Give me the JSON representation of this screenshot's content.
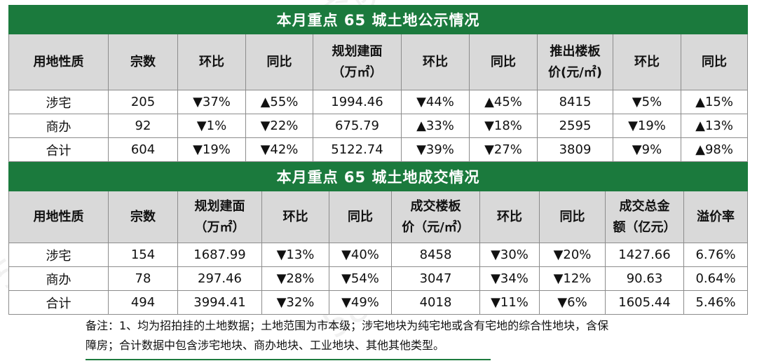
{
  "watermark": "58安居客研究院",
  "table1": {
    "title": "本月重点 65 城土地公示情况",
    "headers": [
      "用地性质",
      "宗数",
      "环比",
      "同比",
      "规划建面（万㎡）",
      "环比",
      "同比",
      "推出楼板价(元/㎡)",
      "环比",
      "同比"
    ],
    "header_lines": [
      [
        "用地性质"
      ],
      [
        "宗数"
      ],
      [
        "环比"
      ],
      [
        "同比"
      ],
      [
        "规划建面",
        "（万㎡）"
      ],
      [
        "环比"
      ],
      [
        "同比"
      ],
      [
        "推出楼板",
        "价(元/㎡)"
      ],
      [
        "环比"
      ],
      [
        "同比"
      ]
    ],
    "rows": [
      [
        {
          "text": "涉宅"
        },
        {
          "text": "205"
        },
        {
          "text": "▼37%",
          "dir": "down"
        },
        {
          "text": "▲55%",
          "dir": "up"
        },
        {
          "text": "1994.46"
        },
        {
          "text": "▼44%",
          "dir": "down"
        },
        {
          "text": "▲45%",
          "dir": "up"
        },
        {
          "text": "8415"
        },
        {
          "text": "▼5%",
          "dir": "down"
        },
        {
          "text": "▲15%",
          "dir": "up"
        }
      ],
      [
        {
          "text": "商办"
        },
        {
          "text": "92"
        },
        {
          "text": "▼1%",
          "dir": "down"
        },
        {
          "text": "▼22%",
          "dir": "down"
        },
        {
          "text": "675.79"
        },
        {
          "text": "▲33%",
          "dir": "up"
        },
        {
          "text": "▼18%",
          "dir": "down"
        },
        {
          "text": "2595"
        },
        {
          "text": "▼19%",
          "dir": "down"
        },
        {
          "text": "▲13%",
          "dir": "up"
        }
      ],
      [
        {
          "text": "合计"
        },
        {
          "text": "604"
        },
        {
          "text": "▼19%",
          "dir": "down"
        },
        {
          "text": "▼42%",
          "dir": "down"
        },
        {
          "text": "5122.74"
        },
        {
          "text": "▼39%",
          "dir": "down"
        },
        {
          "text": "▼27%",
          "dir": "down"
        },
        {
          "text": "3809"
        },
        {
          "text": "▼9%",
          "dir": "down"
        },
        {
          "text": "▲98%",
          "dir": "up"
        }
      ]
    ]
  },
  "table2": {
    "title": "本月重点 65 城土地成交情况",
    "headers": [
      "用地性质",
      "宗数",
      "规划建面（万㎡）",
      "环比",
      "同比",
      "成交楼板价（元/㎡）",
      "环比",
      "同比",
      "成交总金额（亿元）",
      "溢价率"
    ],
    "header_lines": [
      [
        "用地性质"
      ],
      [
        "宗数"
      ],
      [
        "规划建面",
        "（万㎡）"
      ],
      [
        "环比"
      ],
      [
        "同比"
      ],
      [
        "成交楼板",
        "价（元/㎡）"
      ],
      [
        "环比"
      ],
      [
        "同比"
      ],
      [
        "成交总金",
        "额（亿元）"
      ],
      [
        "溢价率"
      ]
    ],
    "rows": [
      [
        {
          "text": "涉宅"
        },
        {
          "text": "154"
        },
        {
          "text": "1687.99"
        },
        {
          "text": "▼13%",
          "dir": "down"
        },
        {
          "text": "▼40%",
          "dir": "down"
        },
        {
          "text": "8458"
        },
        {
          "text": "▼30%",
          "dir": "down"
        },
        {
          "text": "▼20%",
          "dir": "down"
        },
        {
          "text": "1427.66"
        },
        {
          "text": "6.76%"
        }
      ],
      [
        {
          "text": "商办"
        },
        {
          "text": "78"
        },
        {
          "text": "297.46"
        },
        {
          "text": "▼28%",
          "dir": "down"
        },
        {
          "text": "▼54%",
          "dir": "down"
        },
        {
          "text": "3047"
        },
        {
          "text": "▼34%",
          "dir": "down"
        },
        {
          "text": "▼12%",
          "dir": "down"
        },
        {
          "text": "90.63"
        },
        {
          "text": "0.64%"
        }
      ],
      [
        {
          "text": "合计"
        },
        {
          "text": "494"
        },
        {
          "text": "3994.41"
        },
        {
          "text": "▼32%",
          "dir": "down"
        },
        {
          "text": "▼49%",
          "dir": "down"
        },
        {
          "text": "4018"
        },
        {
          "text": "▼11%",
          "dir": "down"
        },
        {
          "text": "▼6%",
          "dir": "down"
        },
        {
          "text": "1605.44"
        },
        {
          "text": "5.46%"
        }
      ]
    ]
  },
  "note": {
    "line1": "备注：1、均为招拍挂的土地数据；土地范围为市本级；涉宅地块为纯宅地或含有宅地的综合性地块，含保",
    "line2": "障房；合计数据中包含涉宅地块、商办地块、工业地块、其他其他类型。"
  },
  "colors": {
    "band": "#1b7a3d",
    "header_bg": "#d9d9d9",
    "down": "#e60012",
    "up": "#1e9e48"
  }
}
